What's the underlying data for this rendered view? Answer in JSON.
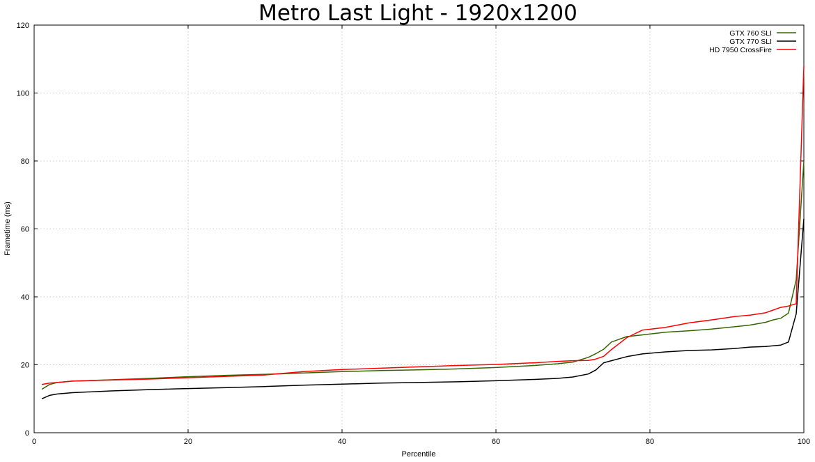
{
  "chart_data": {
    "type": "line",
    "title": "Metro Last Light - 1920x1200",
    "xlabel": "Percentile",
    "ylabel": "Frametime (ms)",
    "xlim": [
      0,
      100
    ],
    "ylim": [
      0,
      120
    ],
    "x_ticks": [
      "0",
      "20",
      "40",
      "60",
      "80",
      "100"
    ],
    "y_ticks": [
      "0",
      "20",
      "40",
      "60",
      "80",
      "100",
      "120"
    ],
    "grid": true,
    "legend_position": "top-right",
    "x": [
      1,
      2,
      3,
      5,
      10,
      15,
      20,
      25,
      30,
      35,
      40,
      45,
      50,
      55,
      60,
      65,
      68,
      70,
      72,
      73,
      74,
      75,
      77,
      79,
      82,
      85,
      88,
      91,
      93,
      95,
      96,
      97,
      98,
      99,
      100
    ],
    "series": [
      {
        "name": "GTX 760 SLI",
        "color": "#336600",
        "values": [
          12.8,
          14.2,
          14.8,
          15.2,
          15.6,
          16.0,
          16.5,
          16.9,
          17.2,
          17.6,
          18.0,
          18.3,
          18.5,
          18.8,
          19.2,
          19.8,
          20.3,
          20.8,
          22.2,
          23.3,
          24.6,
          26.7,
          28.3,
          28.8,
          29.6,
          30.0,
          30.5,
          31.2,
          31.7,
          32.5,
          33.2,
          33.7,
          35.2,
          45.0,
          80.0
        ]
      },
      {
        "name": "GTX 770 SLI",
        "color": "#000000",
        "values": [
          10.0,
          11.0,
          11.4,
          11.8,
          12.3,
          12.7,
          13.0,
          13.3,
          13.6,
          14.0,
          14.3,
          14.6,
          14.8,
          15.0,
          15.3,
          15.7,
          16.0,
          16.4,
          17.3,
          18.5,
          20.6,
          21.2,
          22.4,
          23.2,
          23.8,
          24.2,
          24.4,
          24.8,
          25.2,
          25.4,
          25.6,
          25.8,
          26.7,
          35.0,
          63.0
        ]
      },
      {
        "name": "HD 7950 CrossFire",
        "color": "#ff0000",
        "values": [
          14.2,
          14.6,
          14.8,
          15.2,
          15.5,
          15.8,
          16.2,
          16.6,
          17.0,
          18.0,
          18.6,
          19.0,
          19.4,
          19.8,
          20.1,
          20.6,
          21.0,
          21.2,
          21.3,
          21.7,
          22.5,
          24.5,
          28.0,
          30.2,
          31.0,
          32.3,
          33.2,
          34.2,
          34.6,
          35.3,
          36.1,
          36.9,
          37.3,
          38.0,
          108.0
        ]
      }
    ]
  }
}
